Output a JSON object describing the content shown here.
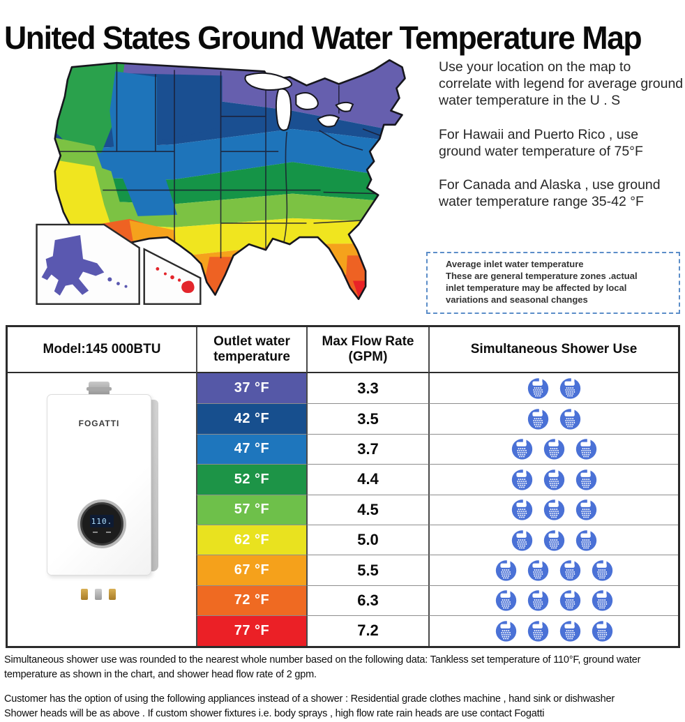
{
  "title": "United States Ground Water Temperature Map",
  "map_notes": {
    "p1": "Use your location on the map to correlate with legend for average ground water temperature in the U . S",
    "p2": "For Hawaii and Puerto Rico , use ground water temperature of 75°F",
    "p3": "For Canada and Alaska , use ground water temperature range 35-42 °F"
  },
  "callout": {
    "title": "Average inlet water temperature",
    "body": "These are general temperature zones .actual inlet temperature may be affected by local variations and seasonal changes"
  },
  "map": {
    "zone_colors": {
      "purple": "#665fae",
      "navy": "#1a4f91",
      "blue": "#1e74ba",
      "dark_green": "#159447",
      "green": "#2aa14c",
      "light_green": "#7cc243",
      "yellow": "#f0e51f",
      "orange": "#f5a21c",
      "dark_orange": "#ee6223",
      "red": "#e92227",
      "alaska": "#5a58b0",
      "hawaii": "#e3252b"
    },
    "shower_icon_color": "#4a71d6"
  },
  "table": {
    "headers": [
      "Model:145 000BTU",
      "Outlet water temperature",
      "Max Flow Rate (GPM)",
      "Simultaneous Shower Use"
    ],
    "brand": "FOGATTI",
    "display_value": "110.",
    "rows": [
      {
        "temp": "37 °F",
        "color": "#5558a7",
        "gpm": "3.3",
        "showers": 2
      },
      {
        "temp": "42 °F",
        "color": "#174f8e",
        "gpm": "3.5",
        "showers": 2
      },
      {
        "temp": "47 °F",
        "color": "#1e76bd",
        "gpm": "3.7",
        "showers": 3
      },
      {
        "temp": "52 °F",
        "color": "#1d9447",
        "gpm": "4.4",
        "showers": 3
      },
      {
        "temp": "57 °F",
        "color": "#6ec04a",
        "gpm": "4.5",
        "showers": 3
      },
      {
        "temp": "62 °F",
        "color": "#e9e21f",
        "gpm": "5.0",
        "showers": 3
      },
      {
        "temp": "67 °F",
        "color": "#f5a11b",
        "gpm": "5.5",
        "showers": 4
      },
      {
        "temp": "72 °F",
        "color": "#ef6a22",
        "gpm": "6.3",
        "showers": 4
      },
      {
        "temp": "77 °F",
        "color": "#eb2026",
        "gpm": "7.2",
        "showers": 4
      }
    ]
  },
  "chart_data": {
    "type": "table",
    "title": "Model:145 000BTU flow performance",
    "columns": [
      "Outlet water temperature",
      "Max Flow Rate (GPM)",
      "Simultaneous Shower Use"
    ],
    "rows": [
      [
        "37 °F",
        3.3,
        2
      ],
      [
        "42 °F",
        3.5,
        2
      ],
      [
        "47 °F",
        3.7,
        3
      ],
      [
        "52 °F",
        4.4,
        3
      ],
      [
        "57 °F",
        4.5,
        3
      ],
      [
        "62 °F",
        5.0,
        3
      ],
      [
        "67 °F",
        5.5,
        4
      ],
      [
        "72 °F",
        6.3,
        4
      ],
      [
        "77 °F",
        7.2,
        4
      ]
    ]
  },
  "footer": {
    "p1": "Simultaneous shower use was rounded to the nearest whole number based on the following data: Tankless set temperature of 110°F, ground water temperature as shown in the chart, and shower head flow rate of 2 gpm.",
    "p2": "Customer has the option of using the following appliances instead of a shower : Residential grade clothes machine , hand sink or dishwasher",
    "p3": "Shower heads will be as above . If custom shower fixtures i.e. body sprays , high flow rate rain heads are use contact Fogatti"
  }
}
